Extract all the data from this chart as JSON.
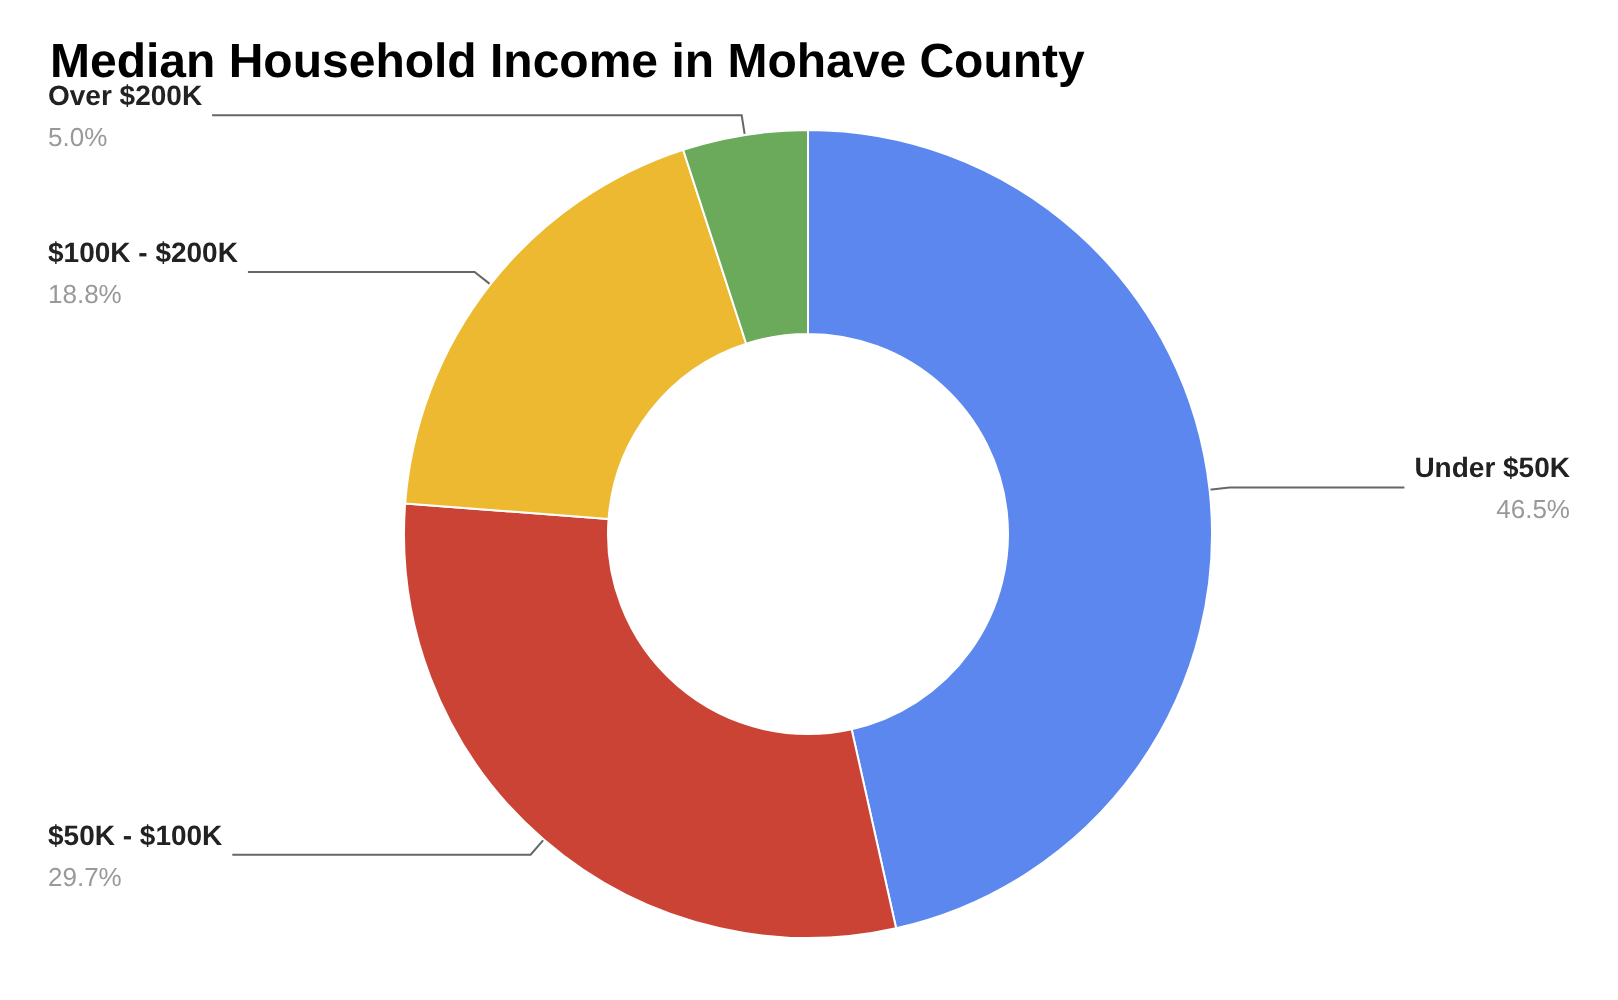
{
  "chart_data": {
    "type": "donut",
    "title": "Median Household Income in Mohave County",
    "categories": [
      "Under $50K",
      "$50K - $100K",
      "$100K - $200K",
      "Over $200K"
    ],
    "values": [
      46.5,
      29.7,
      18.8,
      5.0
    ],
    "colors": [
      "#5b87ef",
      "#cb4335",
      "#ecb931",
      "#6aaa5a"
    ],
    "value_labels": [
      "46.5%",
      "29.7%",
      "18.8%",
      "5.0%"
    ],
    "legend": false
  }
}
